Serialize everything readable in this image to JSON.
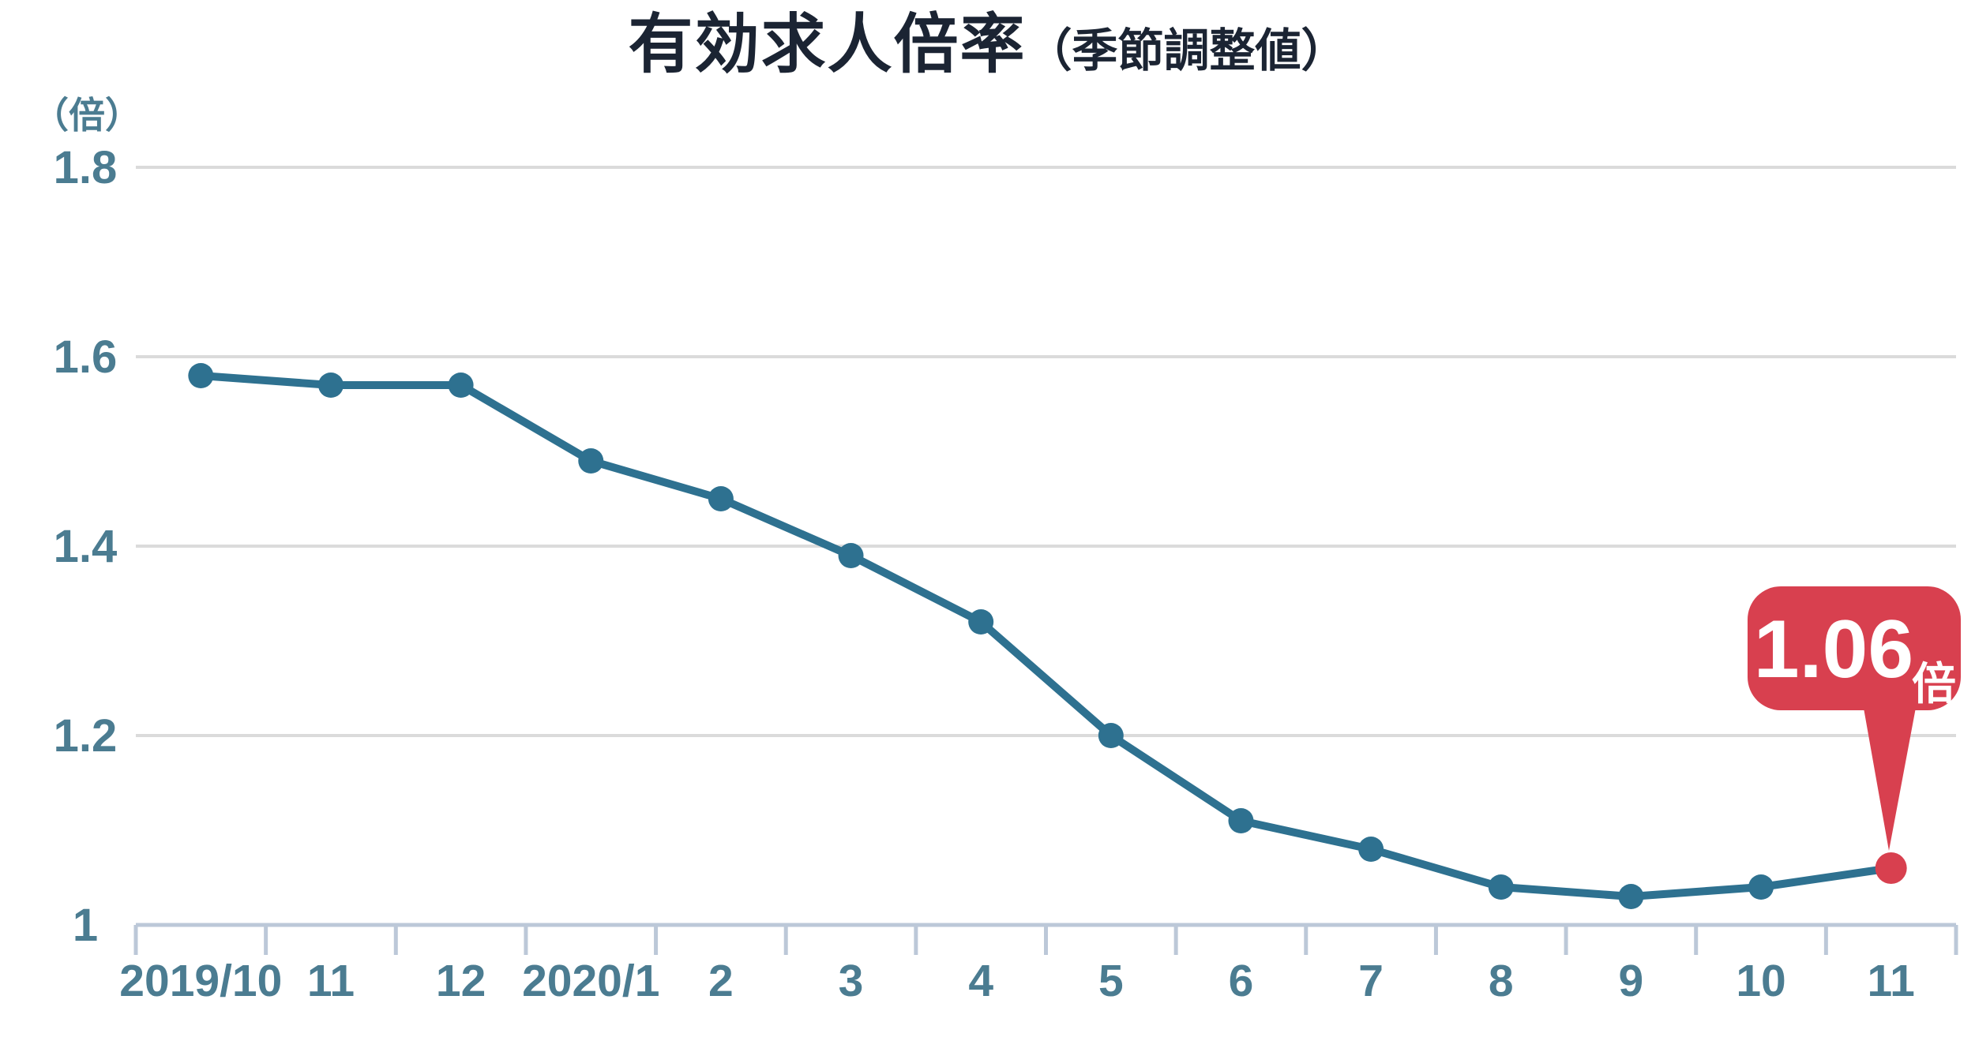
{
  "chart_data": {
    "type": "line",
    "title": "有効求人倍率",
    "subtitle": "（季節調整値）",
    "ylabel": "（倍）",
    "xlabel": "",
    "categories": [
      "2019/10",
      "11",
      "12",
      "2020/1",
      "2",
      "3",
      "4",
      "5",
      "6",
      "7",
      "8",
      "9",
      "10",
      "11"
    ],
    "values": [
      1.58,
      1.57,
      1.57,
      1.49,
      1.45,
      1.39,
      1.32,
      1.2,
      1.11,
      1.08,
      1.04,
      1.03,
      1.04,
      1.06
    ],
    "yticks": [
      {
        "label": "1.8",
        "value": 1.8
      },
      {
        "label": "1.6",
        "value": 1.6
      },
      {
        "label": "1.4",
        "value": 1.4
      },
      {
        "label": "1.2",
        "value": 1.2
      },
      {
        "label": "1",
        "value": 1.0
      }
    ],
    "ylim": [
      1.0,
      1.8
    ],
    "grid": true,
    "legend": "none",
    "annotation": {
      "label": "1.06",
      "unit": "倍",
      "point_index": 13,
      "point_value": 1.06
    }
  },
  "colors": {
    "title": "#1b2433",
    "axis_text": "#4b7c91",
    "line": "#2e7190",
    "marker": "#2e7190",
    "grid": "#dbdbdb",
    "axis_line": "#bcc8d8",
    "highlight": "#d8404f",
    "callout_text": "#ffffff"
  }
}
